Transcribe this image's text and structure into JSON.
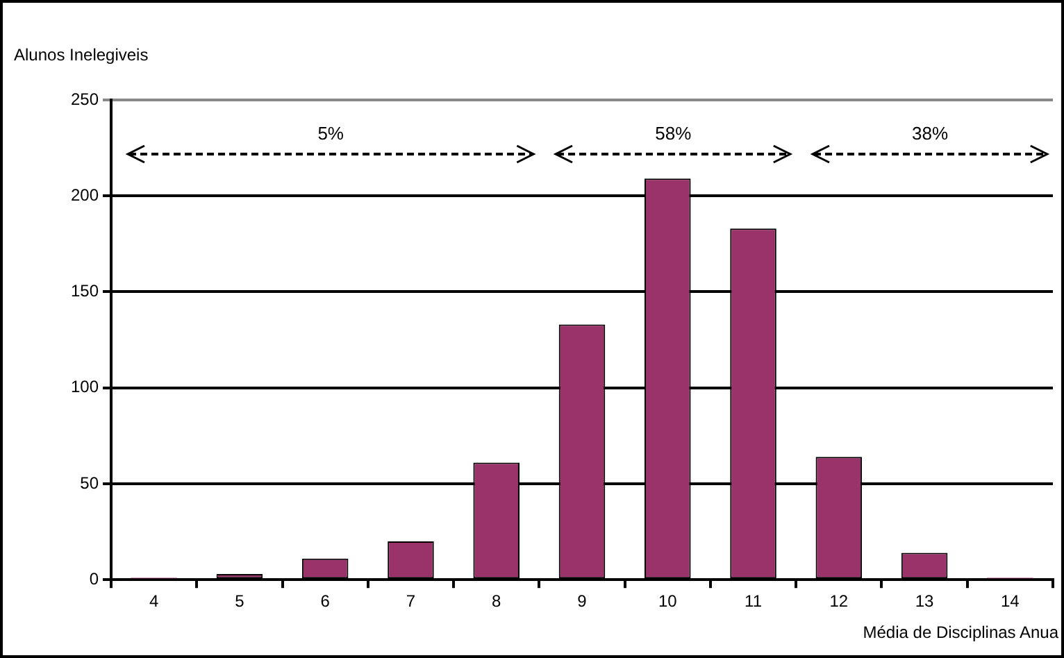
{
  "chart_data": {
    "type": "bar",
    "xlabel": "Média de Disciplinas Anua",
    "ylabel": "Alunos Inelegiveis",
    "categories": [
      "4",
      "5",
      "6",
      "7",
      "8",
      "9",
      "10",
      "11",
      "12",
      "13",
      "14"
    ],
    "values": [
      1,
      3,
      11,
      20,
      61,
      133,
      209,
      183,
      64,
      14,
      1
    ],
    "color": "#99336a",
    "ylim": [
      0,
      250
    ],
    "yticks": [
      0,
      50,
      100,
      150,
      200,
      250
    ],
    "grid": "y",
    "annotations": [
      "5%",
      "58%",
      "38%"
    ]
  }
}
